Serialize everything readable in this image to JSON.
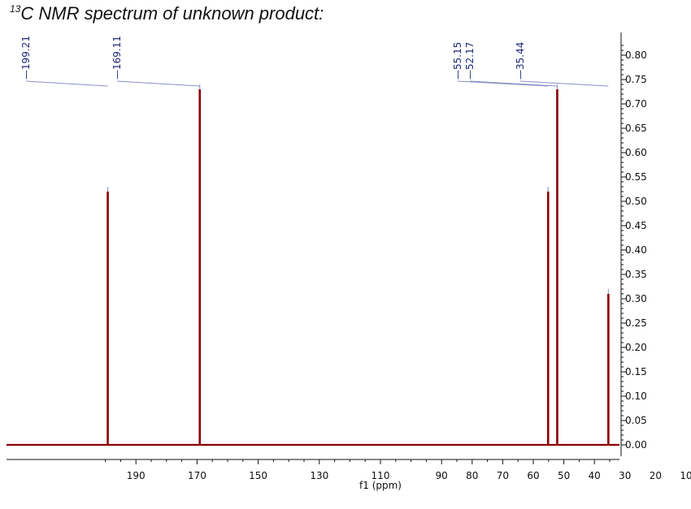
{
  "title": {
    "superscript": "13",
    "text": "C NMR spectrum of unknown product:"
  },
  "chart_data": {
    "type": "line",
    "title": "13C NMR spectrum of unknown product:",
    "xlabel": "f1 (ppm)",
    "ylabel": "",
    "x_reversed": true,
    "xlim": [
      200.5,
      2
    ],
    "ylim": [
      0,
      0.85
    ],
    "x_ticks": [
      190,
      170,
      150,
      130,
      110,
      90,
      80,
      70,
      60,
      50,
      40,
      30,
      20,
      10
    ],
    "x_tick_labels": [
      "190",
      "170",
      "150",
      "130",
      "110",
      "90",
      "80",
      "70",
      "60",
      "50",
      "40",
      "30",
      "20",
      "10"
    ],
    "y_ticks": [
      0.0,
      0.05,
      0.1,
      0.15,
      0.2,
      0.25,
      0.3,
      0.35,
      0.4,
      0.45,
      0.5,
      0.55,
      0.6,
      0.65,
      0.7,
      0.75,
      0.8
    ],
    "y_tick_labels": [
      "0.00",
      "0.05",
      "0.10",
      "0.15",
      "0.20",
      "0.25",
      "0.30",
      "0.35",
      "0.40",
      "0.45",
      "0.50",
      "0.55",
      "0.60",
      "0.65",
      "0.70",
      "0.75",
      "0.80"
    ],
    "y_axis_position": "right",
    "grid": false,
    "line_color": "#8b0000",
    "peak_label_color": "#1f2a7a",
    "peaks": [
      {
        "ppm": 199.21,
        "intensity": 0.52,
        "label": "199.21"
      },
      {
        "ppm": 169.11,
        "intensity": 0.73,
        "label": "169.11"
      },
      {
        "ppm": 55.15,
        "intensity": 0.52,
        "label": "55.15"
      },
      {
        "ppm": 52.17,
        "intensity": 0.73,
        "label": "52.17"
      },
      {
        "ppm": 35.44,
        "intensity": 0.31,
        "label": "35.44"
      }
    ]
  }
}
